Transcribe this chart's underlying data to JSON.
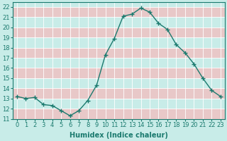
{
  "x": [
    0,
    1,
    2,
    3,
    4,
    5,
    6,
    7,
    8,
    9,
    10,
    11,
    12,
    13,
    14,
    15,
    16,
    17,
    18,
    19,
    20,
    21,
    22,
    23
  ],
  "y": [
    13.2,
    13.0,
    13.1,
    12.4,
    12.3,
    11.8,
    11.3,
    11.8,
    12.8,
    14.3,
    17.3,
    18.9,
    21.1,
    21.3,
    21.9,
    21.5,
    20.4,
    19.8,
    18.3,
    17.5,
    16.4,
    15.0,
    13.8,
    13.2
  ],
  "line_color": "#1a7a6e",
  "marker": "+",
  "markersize": 4,
  "linewidth": 1.0,
  "bg_color": "#c8ece8",
  "band_color_even": "#c8ece8",
  "band_color_odd": "#e8c8c8",
  "grid_color": "#ffffff",
  "xlabel": "Humidex (Indice chaleur)",
  "xlabel_fontsize": 7,
  "tick_fontsize": 6,
  "ylim": [
    11,
    22.5
  ],
  "xlim": [
    -0.5,
    23.5
  ],
  "yticks": [
    11,
    12,
    13,
    14,
    15,
    16,
    17,
    18,
    19,
    20,
    21,
    22
  ],
  "xticks": [
    0,
    1,
    2,
    3,
    4,
    5,
    6,
    7,
    8,
    9,
    10,
    11,
    12,
    13,
    14,
    15,
    16,
    17,
    18,
    19,
    20,
    21,
    22,
    23
  ]
}
